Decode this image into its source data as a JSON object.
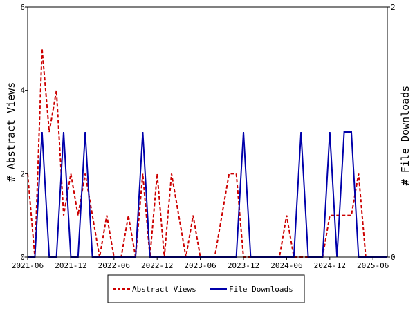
{
  "chart_data": {
    "type": "line",
    "title": "",
    "x_ticks": [
      "2021-06",
      "2021-12",
      "2022-06",
      "2022-12",
      "2023-06",
      "2023-12",
      "2024-06",
      "2024-12",
      "2025-06"
    ],
    "x_range": [
      "2021-06",
      "2025-08"
    ],
    "y_left": {
      "label": "# Abstract Views",
      "range": [
        0,
        6
      ],
      "ticks": [
        "0",
        "2",
        "4",
        "6"
      ]
    },
    "y_right": {
      "label": "# File Downloads",
      "range": [
        0,
        2
      ],
      "ticks": [
        "0",
        "2"
      ]
    },
    "grid": false,
    "legend_position": "bottom-center",
    "series": [
      {
        "name": "Abstract Views",
        "axis": "left",
        "color": "#cc0000",
        "style": "dashed",
        "points": [
          [
            "2021-06",
            2
          ],
          [
            "2021-07",
            0
          ],
          [
            "2021-08",
            5
          ],
          [
            "2021-09",
            3
          ],
          [
            "2021-10",
            4
          ],
          [
            "2021-11",
            1
          ],
          [
            "2021-12",
            2
          ],
          [
            "2022-01",
            1
          ],
          [
            "2022-02",
            2
          ],
          [
            "2022-03",
            1
          ],
          [
            "2022-04",
            0
          ],
          [
            "2022-05",
            1
          ],
          [
            "2022-06",
            0
          ],
          [
            "2022-07",
            0
          ],
          [
            "2022-08",
            1
          ],
          [
            "2022-09",
            0
          ],
          [
            "2022-10",
            2
          ],
          [
            "2022-11",
            0
          ],
          [
            "2022-12",
            2
          ],
          [
            "2023-01",
            0
          ],
          [
            "2023-02",
            2
          ],
          [
            "2023-03",
            1
          ],
          [
            "2023-04",
            0
          ],
          [
            "2023-05",
            1
          ],
          [
            "2023-06",
            0
          ],
          [
            "2023-07",
            0
          ],
          [
            "2023-08",
            0
          ],
          [
            "2023-09",
            1
          ],
          [
            "2023-10",
            2
          ],
          [
            "2023-11",
            2
          ],
          [
            "2023-12",
            0
          ],
          [
            "2024-01",
            0
          ],
          [
            "2024-02",
            0
          ],
          [
            "2024-03",
            0
          ],
          [
            "2024-04",
            0
          ],
          [
            "2024-05",
            0
          ],
          [
            "2024-06",
            1
          ],
          [
            "2024-07",
            0
          ],
          [
            "2024-08",
            0
          ],
          [
            "2024-09",
            0
          ],
          [
            "2024-10",
            0
          ],
          [
            "2024-11",
            0
          ],
          [
            "2024-12",
            1
          ],
          [
            "2025-01",
            1
          ],
          [
            "2025-02",
            1
          ],
          [
            "2025-03",
            1
          ],
          [
            "2025-04",
            2
          ],
          [
            "2025-05",
            0
          ],
          [
            "2025-06",
            0
          ],
          [
            "2025-07",
            0
          ],
          [
            "2025-08",
            0
          ]
        ]
      },
      {
        "name": "File Downloads",
        "axis": "right",
        "color": "#0000aa",
        "style": "solid",
        "points": [
          [
            "2021-06",
            0
          ],
          [
            "2021-07",
            0
          ],
          [
            "2021-08",
            1
          ],
          [
            "2021-09",
            0
          ],
          [
            "2021-10",
            0
          ],
          [
            "2021-11",
            1
          ],
          [
            "2021-12",
            0
          ],
          [
            "2022-01",
            0
          ],
          [
            "2022-02",
            1
          ],
          [
            "2022-03",
            0
          ],
          [
            "2022-04",
            0
          ],
          [
            "2022-05",
            0
          ],
          [
            "2022-06",
            0
          ],
          [
            "2022-07",
            0
          ],
          [
            "2022-08",
            0
          ],
          [
            "2022-09",
            0
          ],
          [
            "2022-10",
            1
          ],
          [
            "2022-11",
            0
          ],
          [
            "2022-12",
            0
          ],
          [
            "2023-01",
            0
          ],
          [
            "2023-02",
            0
          ],
          [
            "2023-03",
            0
          ],
          [
            "2023-04",
            0
          ],
          [
            "2023-05",
            0
          ],
          [
            "2023-06",
            0
          ],
          [
            "2023-07",
            0
          ],
          [
            "2023-08",
            0
          ],
          [
            "2023-09",
            0
          ],
          [
            "2023-10",
            0
          ],
          [
            "2023-11",
            0
          ],
          [
            "2023-12",
            1
          ],
          [
            "2024-01",
            0
          ],
          [
            "2024-02",
            0
          ],
          [
            "2024-03",
            0
          ],
          [
            "2024-04",
            0
          ],
          [
            "2024-05",
            0
          ],
          [
            "2024-06",
            0
          ],
          [
            "2024-07",
            0
          ],
          [
            "2024-08",
            1
          ],
          [
            "2024-09",
            0
          ],
          [
            "2024-10",
            0
          ],
          [
            "2024-11",
            0
          ],
          [
            "2024-12",
            1
          ],
          [
            "2025-01",
            0
          ],
          [
            "2025-02",
            1
          ],
          [
            "2025-03",
            1
          ],
          [
            "2025-04",
            0
          ],
          [
            "2025-05",
            0
          ],
          [
            "2025-06",
            0
          ],
          [
            "2025-07",
            0
          ],
          [
            "2025-08",
            0
          ]
        ]
      }
    ]
  }
}
